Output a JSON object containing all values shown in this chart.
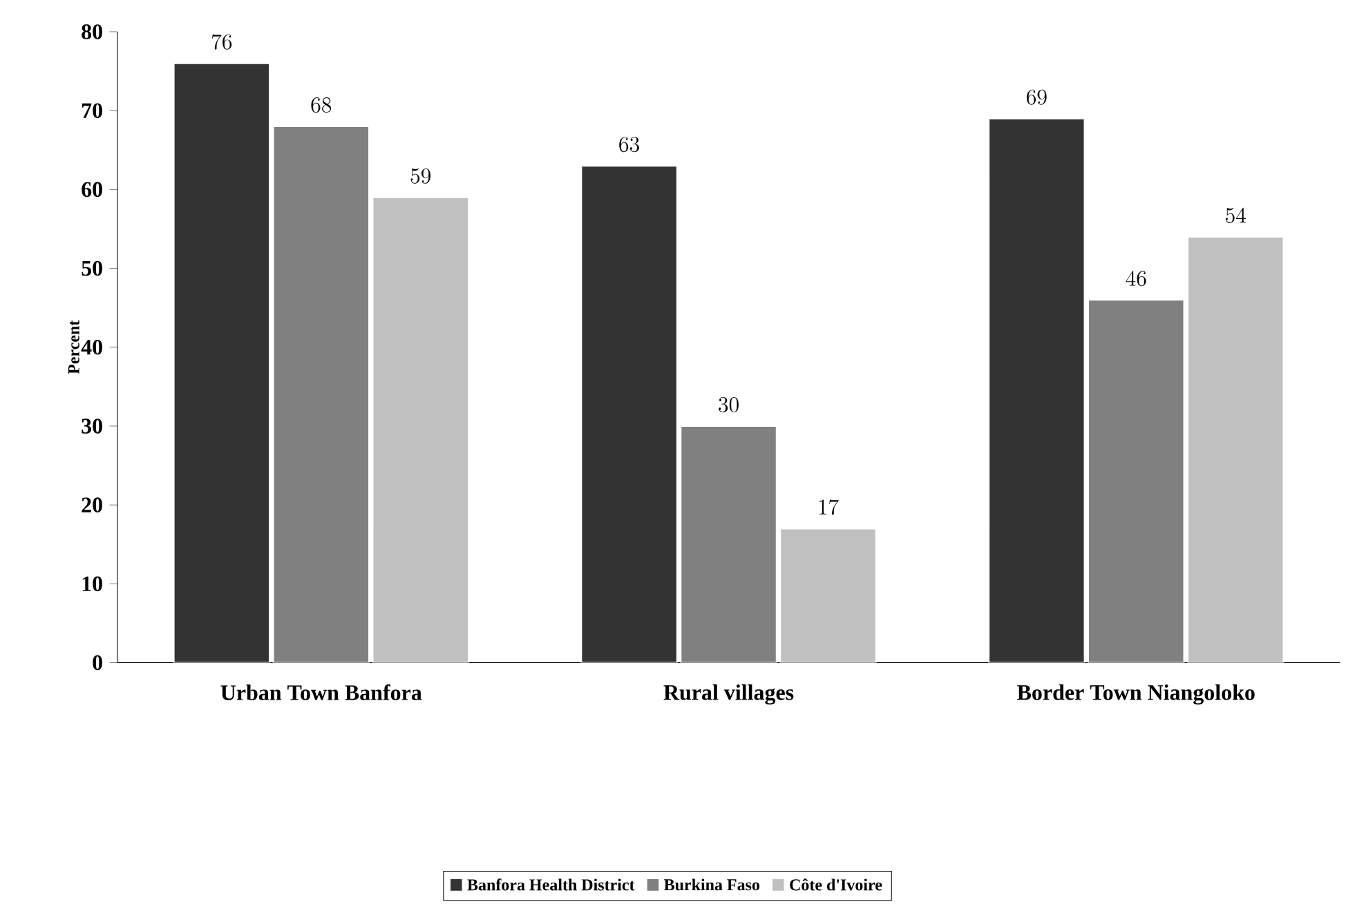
{
  "chart_data": {
    "type": "bar",
    "ylabel": "Percent",
    "categories": [
      "Urban Town Banfora",
      "Rural villages",
      "Border Town Niangoloko"
    ],
    "series": [
      {
        "name": "Banfora Health District",
        "color": "#333333",
        "values": [
          76,
          63,
          69
        ]
      },
      {
        "name": "Burkina Faso",
        "color": "#808080",
        "values": [
          68,
          30,
          46
        ]
      },
      {
        "name": "Côte d'Ivoire",
        "color": "#c0c0c0",
        "values": [
          59,
          17,
          54
        ]
      }
    ],
    "ylim": [
      0,
      80
    ],
    "yticks": [
      0,
      10,
      20,
      30,
      40,
      50,
      60,
      70,
      80
    ],
    "data_labels": true,
    "grid": false,
    "legend": "bottom"
  }
}
